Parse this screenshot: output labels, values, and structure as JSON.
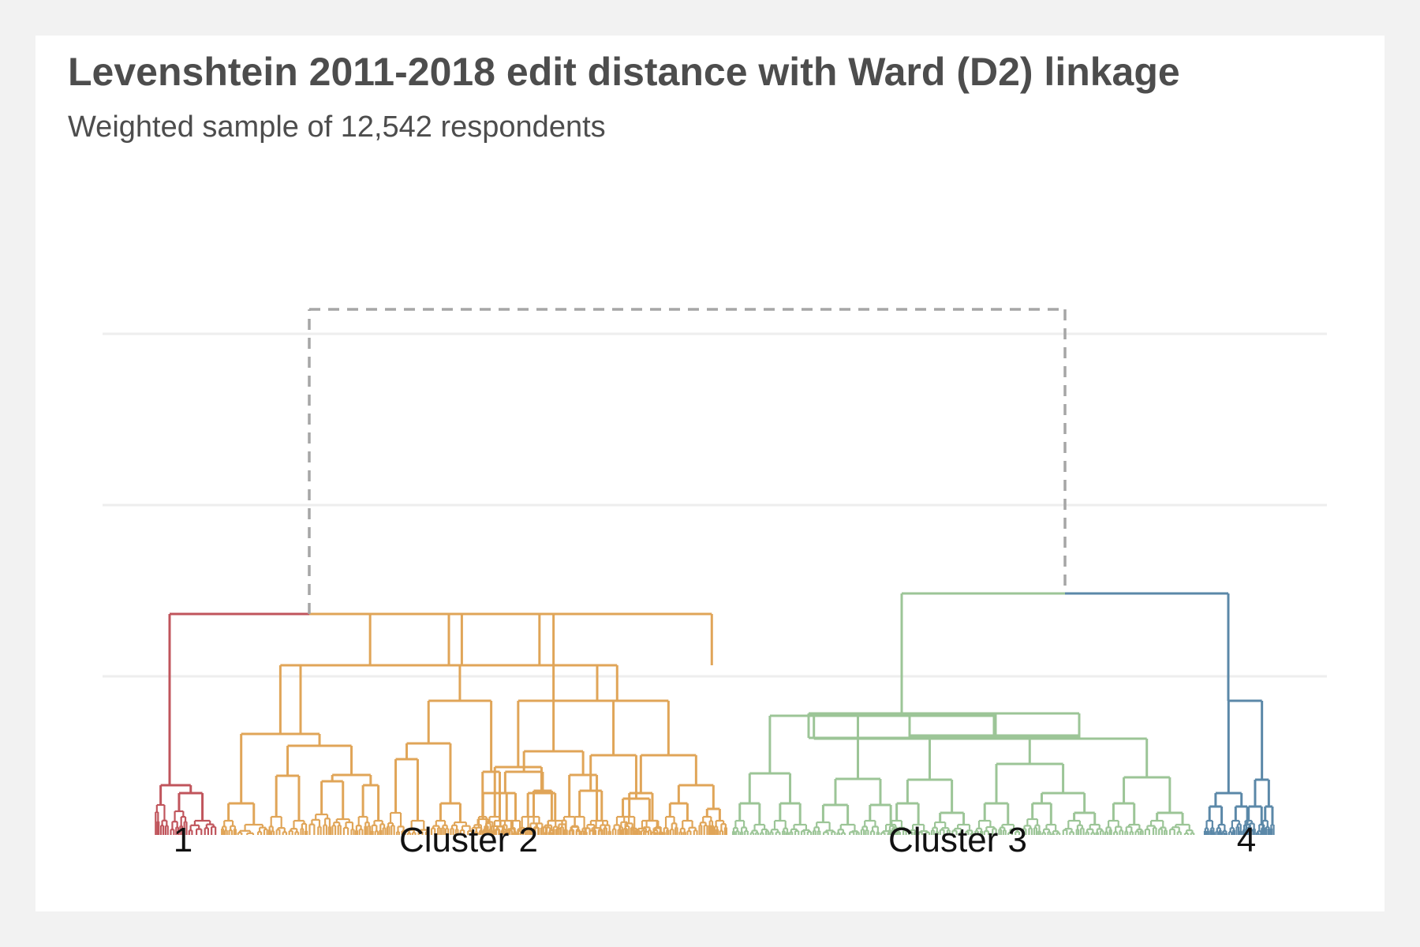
{
  "title": "Levenshtein 2011-2018 edit distance with Ward (D2) linkage",
  "subtitle": "Weighted sample of 12,542 respondents",
  "colors": {
    "cluster1": "#c0555c",
    "cluster2": "#e0a558",
    "cluster3": "#9cc597",
    "cluster4": "#5b88a8",
    "root": "#a6a6a6",
    "grid": "#eeeeee"
  },
  "clusters": [
    {
      "label": "1",
      "color_key": "cluster1"
    },
    {
      "label": "Cluster 2",
      "color_key": "cluster2"
    },
    {
      "label": "Cluster 3",
      "color_key": "cluster3"
    },
    {
      "label": "4",
      "color_key": "cluster4"
    }
  ]
}
